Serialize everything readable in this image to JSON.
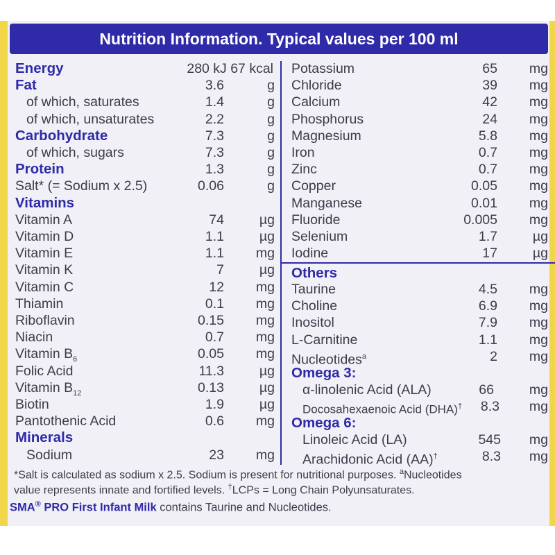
{
  "header": {
    "title": "Nutrition Information. Typical values per 100 ml"
  },
  "left_rows": [
    {
      "label": "Energy",
      "value": "280 kJ 67 kcal",
      "unit": "",
      "style": "bold"
    },
    {
      "label": "Fat",
      "value": "3.6",
      "unit": "g",
      "style": "bold"
    },
    {
      "label": "of which, saturates",
      "value": "1.4",
      "unit": "g",
      "style": "indent"
    },
    {
      "label": "of which, unsaturates",
      "value": "2.2",
      "unit": "g",
      "style": "indent"
    },
    {
      "label": "Carbohydrate",
      "value": "7.3",
      "unit": "g",
      "style": "bold"
    },
    {
      "label": "of which, sugars",
      "value": "7.3",
      "unit": "g",
      "style": "indent"
    },
    {
      "label": "Protein",
      "value": "1.3",
      "unit": "g",
      "style": "bold"
    },
    {
      "label": "Salt* (= Sodium x 2.5)",
      "value": "0.06",
      "unit": "g",
      "style": "normal"
    },
    {
      "label": "Vitamins",
      "value": "",
      "unit": "",
      "style": "bold"
    },
    {
      "label": "Vitamin A",
      "value": "74",
      "unit": "µg",
      "style": "normal"
    },
    {
      "label": "Vitamin D",
      "value": "1.1",
      "unit": "µg",
      "style": "normal"
    },
    {
      "label": "Vitamin E",
      "value": "1.1",
      "unit": "mg",
      "style": "normal"
    },
    {
      "label": "Vitamin K",
      "value": "7",
      "unit": "µg",
      "style": "normal"
    },
    {
      "label": "Vitamin C",
      "value": "12",
      "unit": "mg",
      "style": "normal"
    },
    {
      "label": "Thiamin",
      "value": "0.1",
      "unit": "mg",
      "style": "normal"
    },
    {
      "label": "Riboflavin",
      "value": "0.15",
      "unit": "mg",
      "style": "normal"
    },
    {
      "label": "Niacin",
      "value": "0.7",
      "unit": "mg",
      "style": "normal"
    },
    {
      "label": "Vitamin B",
      "sub": "6",
      "value": "0.05",
      "unit": "mg",
      "style": "normal"
    },
    {
      "label": "Folic Acid",
      "value": "11.3",
      "unit": "µg",
      "style": "normal"
    },
    {
      "label": "Vitamin B",
      "sub": "12",
      "value": "0.13",
      "unit": "µg",
      "style": "normal"
    },
    {
      "label": "Biotin",
      "value": "1.9",
      "unit": "µg",
      "style": "normal"
    },
    {
      "label": "Pantothenic Acid",
      "value": "0.6",
      "unit": "mg",
      "style": "normal"
    },
    {
      "label": "Minerals",
      "value": "",
      "unit": "",
      "style": "bold"
    },
    {
      "label": "Sodium",
      "value": "23",
      "unit": "mg",
      "style": "indent"
    }
  ],
  "right_rows": [
    {
      "label": "Potassium",
      "value": "65",
      "unit": "mg",
      "style": "normal"
    },
    {
      "label": "Chloride",
      "value": "39",
      "unit": "mg",
      "style": "normal"
    },
    {
      "label": "Calcium",
      "value": "42",
      "unit": "mg",
      "style": "normal"
    },
    {
      "label": "Phosphorus",
      "value": "24",
      "unit": "mg",
      "style": "normal"
    },
    {
      "label": "Magnesium",
      "value": "5.8",
      "unit": "mg",
      "style": "normal"
    },
    {
      "label": "Iron",
      "value": "0.7",
      "unit": "mg",
      "style": "normal"
    },
    {
      "label": "Zinc",
      "value": "0.7",
      "unit": "mg",
      "style": "normal"
    },
    {
      "label": "Copper",
      "value": "0.05",
      "unit": "mg",
      "style": "normal"
    },
    {
      "label": "Manganese",
      "value": "0.01",
      "unit": "mg",
      "style": "normal"
    },
    {
      "label": "Fluoride",
      "value": "0.005",
      "unit": "mg",
      "style": "normal"
    },
    {
      "label": "Selenium",
      "value": "1.7",
      "unit": "µg",
      "style": "normal"
    },
    {
      "label": "Iodine",
      "value": "17",
      "unit": "µg",
      "style": "normal"
    }
  ],
  "others_heading": "Others",
  "others_rows": [
    {
      "label": "Taurine",
      "value": "4.5",
      "unit": "mg",
      "style": "normal"
    },
    {
      "label": "Choline",
      "value": "6.9",
      "unit": "mg",
      "style": "normal"
    },
    {
      "label": "Inositol",
      "value": "7.9",
      "unit": "mg",
      "style": "normal"
    },
    {
      "label": "L-Carnitine",
      "value": "1.1",
      "unit": "mg",
      "style": "normal"
    },
    {
      "label": "Nucleotides",
      "sup": "a",
      "value": "2",
      "unit": "mg",
      "style": "normal"
    }
  ],
  "omega3_heading": "Omega 3:",
  "omega3_rows": [
    {
      "label": "α-linolenic Acid (ALA)",
      "value": "66",
      "unit": "mg",
      "style": "indent"
    },
    {
      "label": "Docosahexaenoic Acid (DHA)",
      "sup": "†",
      "value": "8.3",
      "unit": "mg",
      "style": "indent-small"
    }
  ],
  "omega6_heading": "Omega 6:",
  "omega6_rows": [
    {
      "label": "Linoleic Acid (LA)",
      "value": "545",
      "unit": "mg",
      "style": "indent"
    },
    {
      "label": "Arachidonic Acid (AA)",
      "sup": "†",
      "value": "8.3",
      "unit": "mg",
      "style": "indent"
    }
  ],
  "footer": {
    "line1": "*Salt is calculated as sodium x 2.5. Sodium is present for nutritional purposes. ",
    "line1_sup": "a",
    "line1_end": "Nucleotides",
    "line2": "value represents innate and fortified levels. ",
    "line2_sup": "†",
    "line2_end": "LCPs = Long Chain Polyunsaturates.",
    "brand": "SMA",
    "brand_reg": "®",
    "brand_rest": " PRO First Infant Milk",
    "desc": " contains Taurine and Nucleotides."
  },
  "colors": {
    "accent": "#2f2aa8",
    "panel": "#f0f0f6",
    "edge": "#f2d64a",
    "text": "#3f3a4a"
  }
}
